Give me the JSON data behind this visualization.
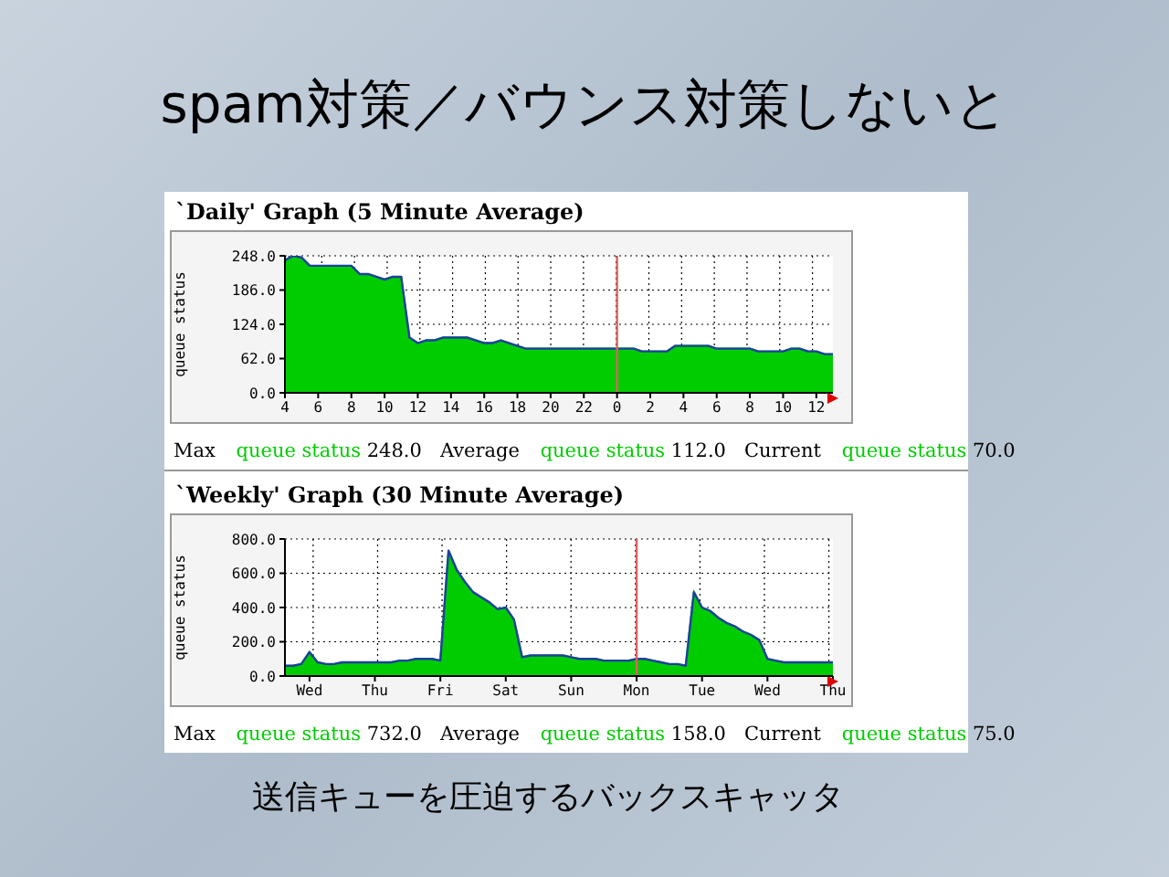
{
  "chart_data": [
    {
      "type": "area",
      "title": "`Daily' Graph (5 Minute Average)",
      "ylabel": "queue status",
      "categories": [
        "4",
        null,
        null,
        null,
        "6",
        null,
        null,
        null,
        "8",
        null,
        null,
        null,
        "10",
        null,
        null,
        null,
        "12",
        null,
        null,
        null,
        "14",
        null,
        null,
        null,
        "16",
        null,
        null,
        null,
        "18",
        null,
        null,
        null,
        "20",
        null,
        null,
        null,
        "22",
        null,
        null,
        null,
        "0",
        null,
        null,
        null,
        "2",
        null,
        null,
        null,
        "4",
        null,
        null,
        null,
        "6",
        null,
        null,
        null,
        "8",
        null,
        null,
        null,
        "10",
        null,
        null,
        null,
        "12",
        null,
        null
      ],
      "series": [
        {
          "name": "queue status",
          "color": "#00cc00",
          "values": [
            240,
            248,
            245,
            230,
            230,
            230,
            230,
            230,
            230,
            215,
            215,
            210,
            205,
            210,
            210,
            100,
            90,
            95,
            95,
            100,
            100,
            100,
            100,
            95,
            90,
            90,
            95,
            90,
            85,
            80,
            80,
            80,
            80,
            80,
            80,
            80,
            80,
            80,
            80,
            80,
            80,
            80,
            80,
            75,
            75,
            75,
            75,
            85,
            85,
            85,
            85,
            85,
            80,
            80,
            80,
            80,
            80,
            75,
            75,
            75,
            75,
            80,
            80,
            75,
            75,
            70,
            70
          ]
        },
        {
          "type": "line",
          "color": "#1f3f9f",
          "values": [
            240,
            248,
            245,
            230,
            230,
            230,
            230,
            230,
            230,
            215,
            215,
            210,
            205,
            210,
            210,
            100,
            90,
            95,
            95,
            100,
            100,
            100,
            100,
            95,
            90,
            90,
            95,
            90,
            85,
            80,
            80,
            80,
            80,
            80,
            80,
            80,
            80,
            80,
            80,
            80,
            80,
            80,
            80,
            75,
            75,
            75,
            75,
            85,
            85,
            85,
            85,
            85,
            80,
            80,
            80,
            80,
            80,
            75,
            75,
            75,
            75,
            80,
            80,
            75,
            75,
            70,
            70
          ]
        }
      ],
      "ylim": [
        0,
        248
      ],
      "yticks": [
        {
          "value": 0,
          "label": "0.0"
        },
        {
          "value": 62,
          "label": "62.0"
        },
        {
          "value": 124,
          "label": "124.0"
        },
        {
          "value": 186,
          "label": "186.0"
        },
        {
          "value": 248,
          "label": "248.0"
        }
      ],
      "ref_lines": [
        {
          "axis": "x",
          "value": "0",
          "color": "#e06060"
        }
      ],
      "grid": true,
      "annotations": [
        "spam対策／バウンス対策しないと",
        "Max",
        "248.0",
        "Average",
        "112.0",
        "Current",
        "70.0"
      ]
    },
    {
      "type": "area",
      "title": "`Weekly' Graph (30 Minute Average)",
      "ylabel": "queue status",
      "categories": [
        null,
        null,
        null,
        "Wed",
        null,
        null,
        null,
        null,
        null,
        null,
        null,
        "Thu",
        null,
        null,
        null,
        null,
        null,
        null,
        null,
        "Fri",
        null,
        null,
        null,
        null,
        null,
        null,
        null,
        "Sat",
        null,
        null,
        null,
        null,
        null,
        null,
        null,
        "Sun",
        null,
        null,
        null,
        null,
        null,
        null,
        null,
        "Mon",
        null,
        null,
        null,
        null,
        null,
        null,
        null,
        "Tue",
        null,
        null,
        null,
        null,
        null,
        null,
        null,
        "Wed",
        null,
        null,
        null,
        null,
        null,
        null,
        null,
        "Thu"
      ],
      "series": [
        {
          "name": "queue status",
          "color": "#00cc00",
          "values": [
            60,
            60,
            70,
            140,
            80,
            70,
            70,
            80,
            80,
            80,
            80,
            80,
            80,
            80,
            90,
            90,
            100,
            100,
            100,
            90,
            732,
            620,
            550,
            490,
            460,
            430,
            390,
            400,
            330,
            110,
            120,
            120,
            120,
            120,
            120,
            110,
            100,
            100,
            100,
            90,
            90,
            90,
            90,
            100,
            100,
            90,
            80,
            70,
            70,
            60,
            490,
            400,
            380,
            340,
            310,
            290,
            260,
            240,
            210,
            100,
            90,
            80,
            80,
            80,
            80,
            80,
            80,
            80
          ]
        },
        {
          "type": "line",
          "color": "#1f3f9f",
          "values": [
            60,
            60,
            70,
            140,
            80,
            70,
            70,
            80,
            80,
            80,
            80,
            80,
            80,
            80,
            90,
            90,
            100,
            100,
            100,
            90,
            732,
            620,
            550,
            490,
            460,
            430,
            390,
            400,
            330,
            110,
            120,
            120,
            120,
            120,
            120,
            110,
            100,
            100,
            100,
            90,
            90,
            90,
            90,
            100,
            100,
            90,
            80,
            70,
            70,
            60,
            490,
            400,
            380,
            340,
            310,
            290,
            260,
            240,
            210,
            100,
            90,
            80,
            80,
            80,
            80,
            80,
            80,
            80
          ]
        }
      ],
      "ylim": [
        0,
        800
      ],
      "yticks": [
        {
          "value": 0,
          "label": "0.0"
        },
        {
          "value": 200,
          "label": "200.0"
        },
        {
          "value": 400,
          "label": "400.0"
        },
        {
          "value": 600,
          "label": "600.0"
        },
        {
          "value": 800,
          "label": "800.0"
        }
      ],
      "ref_lines": [
        {
          "axis": "x",
          "value": "Mon",
          "color": "#e06060"
        }
      ],
      "grid": true,
      "annotations": [
        "Max",
        "732.0",
        "Average",
        "158.0",
        "Current",
        "75.0",
        "送信キューを圧迫するバックスキャッタ"
      ]
    }
  ]
}
